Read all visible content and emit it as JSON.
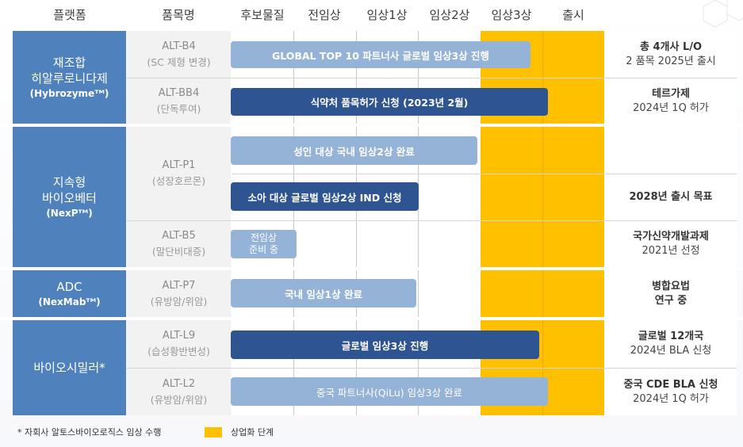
{
  "header": {
    "platform": "플랫폼",
    "product": "품목명",
    "candidate": "후보물질",
    "preclinical": "전임상",
    "phase1": "임상1상",
    "phase2": "임상2상",
    "phase3": "임상3상",
    "launch": "출시"
  },
  "sections": {
    "hybrozyme": {
      "title_line1": "재조합",
      "title_line2": "히알루로니다제",
      "brand": "(Hybrozymeᵀᴹ)"
    },
    "nexp": {
      "title_line1": "지속형",
      "title_line2": "바이오베터",
      "brand": "(NexPᵀᴹ)"
    },
    "adc": {
      "title_line1": "ADC",
      "brand": "(NexMabᵀᴹ)"
    },
    "biosimilar": {
      "title_line1": "바이오시밀러*"
    }
  },
  "products": {
    "b4": {
      "code": "ALT-B4",
      "desc": "(SC 제형 변경)"
    },
    "bb4": {
      "code": "ALT-BB4",
      "desc": "(단독투여)"
    },
    "p1": {
      "code": "ALT-P1",
      "desc": "(성장호르몬)"
    },
    "b5": {
      "code": "ALT-B5",
      "desc": "(말단비대증)"
    },
    "p7": {
      "code": "ALT-P7",
      "desc": "(유방암/위암)"
    },
    "l9": {
      "code": "ALT-L9",
      "desc": "(습성황반변성)"
    },
    "l2": {
      "code": "ALT-L2",
      "desc": "(유방암/위암)"
    }
  },
  "bars": {
    "b4": "GLOBAL TOP 10 파트너사 글로벌 임상3상 진행",
    "bb4": "식약처 품목허가 신청 (2023년 2월)",
    "p1_adult": "성인 대상 국내 임상2상 완료",
    "p1_child": "소아 대상 글로벌 임상2상 IND 신청",
    "b5_line1": "전임상",
    "b5_line2": "준비 중",
    "p7": "국내 임상1상 완료",
    "l9": "글로벌 임상3상 진행",
    "l2": "중국 파트너사(QiLu) 임상3상 완료"
  },
  "status": {
    "b4_line1": "총 4개사 L/O",
    "b4_line2": "2 품목 2025년 출시",
    "bb4_line1": "테르가제",
    "bb4_line2": "2024년 1Q 허가",
    "p1_child": "2028년 출시 목표",
    "b5_line1": "국가신약개발과제",
    "b5_line2": "2021년 선정",
    "p7_line1": "병합요법",
    "p7_line2": "연구 중",
    "l9_line1": "글로벌 12개국",
    "l9_line2": "2024년 BLA 신청",
    "l2_line1": "중국 CDE BLA 신청",
    "l2_line2": "2024년 1Q 허가"
  },
  "footer": {
    "note": "* 자회사 알토스바이오로직스 임상 수행",
    "legend_label": "상업화 단계"
  },
  "colors": {
    "section": "#4f81bd",
    "bar_light": "#95b3d7",
    "bar_dark": "#2e5491",
    "commercial": "#ffc000"
  }
}
